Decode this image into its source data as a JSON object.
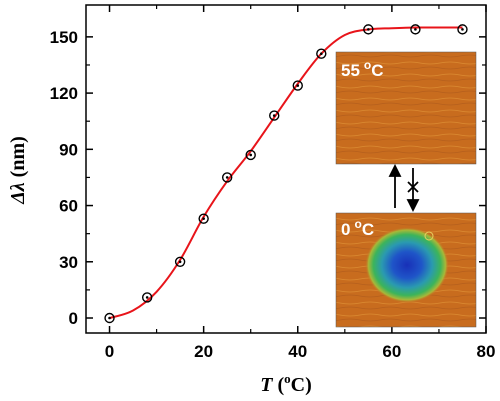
{
  "chart_data": {
    "type": "scatter",
    "title": "",
    "xlabel": {
      "symbol": "T",
      "unit_base": "C",
      "unit_sup": "o"
    },
    "ylabel": {
      "symbol": "Δλ",
      "unit": "(nm)"
    },
    "xlim": [
      -5,
      80
    ],
    "ylim": [
      -8,
      167
    ],
    "x_ticks": [
      0,
      20,
      40,
      60,
      80
    ],
    "y_ticks": [
      0,
      30,
      60,
      90,
      120,
      150
    ],
    "grid": false,
    "series": [
      {
        "marker": "open-circle-dot",
        "color": "#000000",
        "points": [
          [
            0,
            0
          ],
          [
            8,
            11
          ],
          [
            15,
            30
          ],
          [
            20,
            53
          ],
          [
            25,
            75
          ],
          [
            30,
            87
          ],
          [
            35,
            108
          ],
          [
            40,
            124
          ],
          [
            45,
            141
          ],
          [
            55,
            154
          ],
          [
            65,
            154
          ],
          [
            75,
            154
          ]
        ]
      }
    ],
    "fit_curve": {
      "color": "#e8141a",
      "points": [
        [
          0,
          0
        ],
        [
          5,
          4
        ],
        [
          10,
          14
        ],
        [
          15,
          31
        ],
        [
          20,
          54
        ],
        [
          25,
          73
        ],
        [
          30,
          89
        ],
        [
          35,
          107
        ],
        [
          40,
          125
        ],
        [
          45,
          141
        ],
        [
          50,
          151
        ],
        [
          55,
          154
        ],
        [
          60,
          154.6
        ],
        [
          65,
          155
        ],
        [
          70,
          155
        ],
        [
          75,
          155
        ]
      ]
    },
    "insets": [
      {
        "label_number": "55",
        "label_sup": "o",
        "label_unit": "C"
      },
      {
        "label_number": "0",
        "label_sup": "o",
        "label_unit": "C"
      }
    ],
    "transition_arrows": {
      "up": "reversible",
      "down": "blocked"
    }
  }
}
